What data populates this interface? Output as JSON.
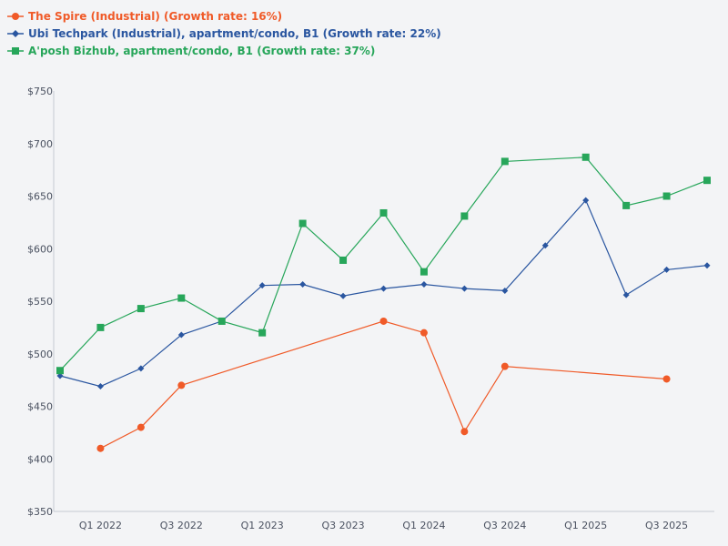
{
  "chart_data": {
    "type": "line",
    "title": "",
    "xlabel": "",
    "ylabel": "",
    "ylim": [
      350,
      750
    ],
    "yticks": [
      350,
      400,
      450,
      500,
      550,
      600,
      650,
      700,
      750
    ],
    "ytick_labels": [
      "$350",
      "$400",
      "$450",
      "$500",
      "$550",
      "$600",
      "$650",
      "$700",
      "$750"
    ],
    "x_points": [
      "Q4 2021",
      "Q1 2022",
      "Q2 2022",
      "Q3 2022",
      "Q4 2022",
      "Q1 2023",
      "Q2 2023",
      "Q3 2023",
      "Q4 2023",
      "Q1 2024",
      "Q2 2024",
      "Q3 2024",
      "Q4 2024",
      "Q1 2025",
      "Q2 2025",
      "Q3 2025",
      "Q4 2025"
    ],
    "x_tick_labels": [
      "Q1 2022",
      "Q3 2022",
      "Q1 2023",
      "Q3 2023",
      "Q1 2024",
      "Q3 2024",
      "Q1 2025",
      "Q3 2025"
    ],
    "x_tick_indices": [
      1,
      3,
      5,
      7,
      9,
      11,
      13,
      15
    ],
    "legend_position": "top-left",
    "grid": false,
    "series": [
      {
        "name": "The Spire (Industrial) (Growth rate: 16%)",
        "color": "#f05a28",
        "marker": "circle",
        "values": [
          null,
          410,
          430,
          470,
          null,
          null,
          null,
          null,
          531,
          520,
          426,
          488,
          null,
          null,
          null,
          476,
          null
        ]
      },
      {
        "name": "Ubi Techpark (Industrial), apartment/condo, B1 (Growth rate: 22%)",
        "color": "#2a56a0",
        "marker": "diamond",
        "values": [
          479,
          469,
          486,
          518,
          531,
          565,
          566,
          555,
          562,
          566,
          562,
          560,
          603,
          646,
          556,
          580,
          584
        ]
      },
      {
        "name": "A'posh Bizhub, apartment/condo, B1 (Growth rate: 37%)",
        "color": "#27a65a",
        "marker": "square",
        "values": [
          484,
          525,
          543,
          553,
          531,
          520,
          624,
          589,
          634,
          578,
          631,
          683,
          null,
          687,
          641,
          650,
          665
        ]
      }
    ]
  },
  "axis_color": "#c5cad3"
}
